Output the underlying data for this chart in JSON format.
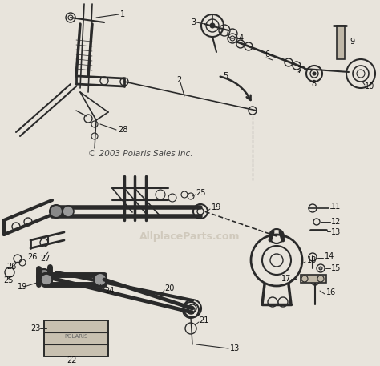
{
  "bg_color": "#e8e4dc",
  "line_color": "#2a2a2a",
  "label_color": "#111111",
  "copyright_text": "© 2003 Polaris Sales Inc.",
  "watermark": "AllplaceParts.com",
  "fig_width": 4.74,
  "fig_height": 4.57,
  "dpi": 100
}
